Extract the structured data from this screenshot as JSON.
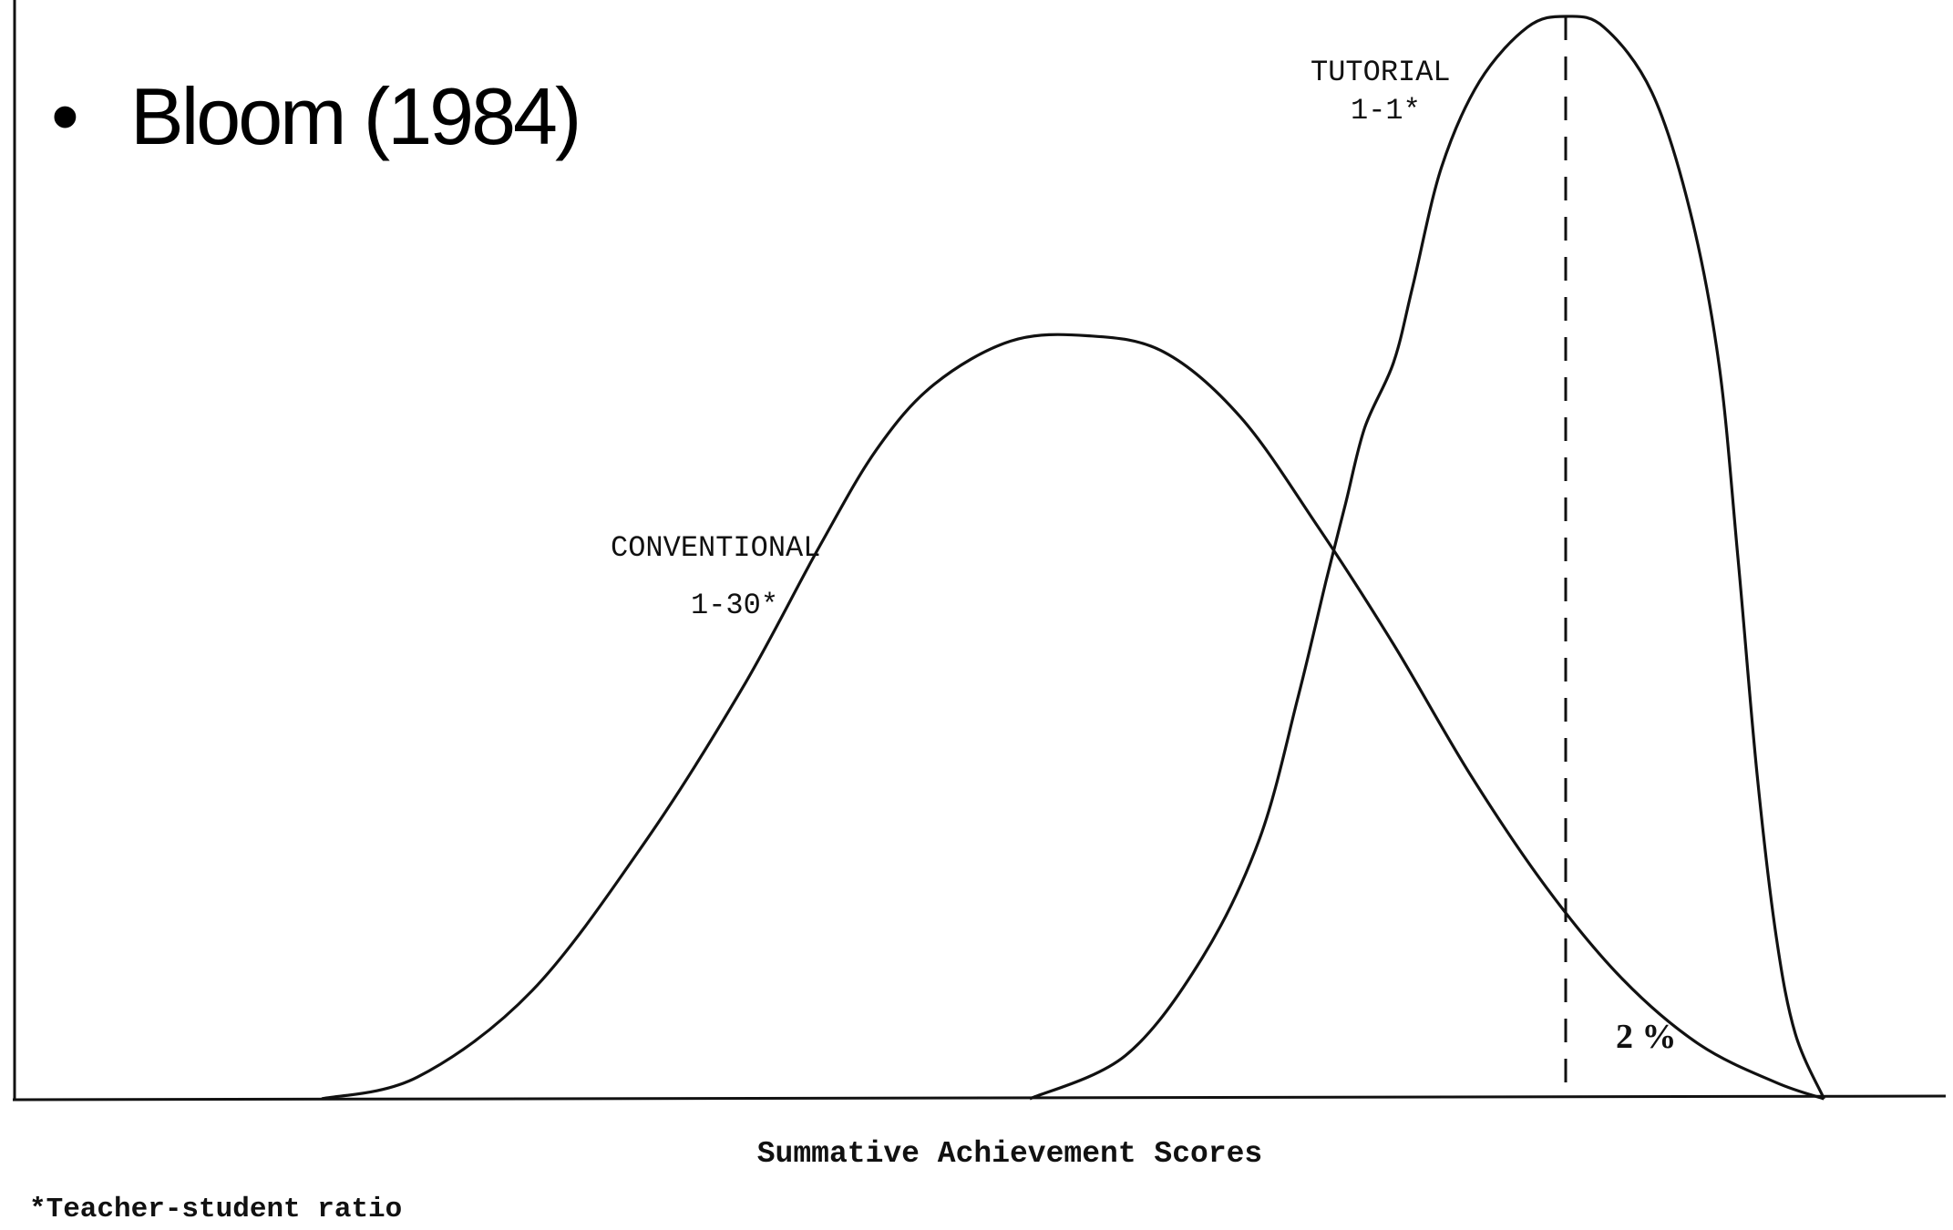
{
  "slide": {
    "bullet": "•",
    "title": "Bloom (1984)"
  },
  "chart_data": {
    "type": "line",
    "title": "",
    "xlabel": "Summative Achievement Scores",
    "ylabel": "",
    "xlim": [
      0,
      100
    ],
    "ylim": [
      0,
      100
    ],
    "grid": false,
    "series": [
      {
        "name": "CONVENTIONAL",
        "label_line1": "CONVENTIONAL",
        "label_line2": "1-30*",
        "points": [
          [
            16,
            0
          ],
          [
            21,
            2
          ],
          [
            27,
            10
          ],
          [
            33,
            24
          ],
          [
            38,
            38
          ],
          [
            42,
            51
          ],
          [
            45,
            60
          ],
          [
            48,
            66
          ],
          [
            52,
            70
          ],
          [
            56,
            70.5
          ],
          [
            60,
            69
          ],
          [
            64,
            63
          ],
          [
            68,
            53
          ],
          [
            72,
            42
          ],
          [
            76,
            30
          ],
          [
            80,
            19.5
          ],
          [
            84,
            11
          ],
          [
            88,
            5
          ],
          [
            92,
            1.5
          ],
          [
            94.5,
            0
          ]
        ]
      },
      {
        "name": "TUTORIAL",
        "label_line1": "TUTORIAL",
        "label_line2": "1-1*",
        "points": [
          [
            53,
            0
          ],
          [
            58,
            4
          ],
          [
            62,
            13
          ],
          [
            65,
            24
          ],
          [
            67,
            37
          ],
          [
            68.5,
            48
          ],
          [
            69.5,
            55
          ],
          [
            70.5,
            62
          ],
          [
            72,
            68
          ],
          [
            73,
            75
          ],
          [
            74.5,
            86
          ],
          [
            76.5,
            94
          ],
          [
            79,
            99
          ],
          [
            81,
            100
          ],
          [
            83,
            99
          ],
          [
            85.5,
            93
          ],
          [
            87.5,
            82
          ],
          [
            89,
            68
          ],
          [
            90,
            50
          ],
          [
            91,
            30
          ],
          [
            92,
            15
          ],
          [
            93,
            6
          ],
          [
            94.5,
            0
          ]
        ]
      }
    ],
    "annotations": [
      {
        "type": "dashed-vline",
        "x": 81,
        "label": "2 %"
      }
    ],
    "footnote": "*Teacher-student ratio"
  }
}
